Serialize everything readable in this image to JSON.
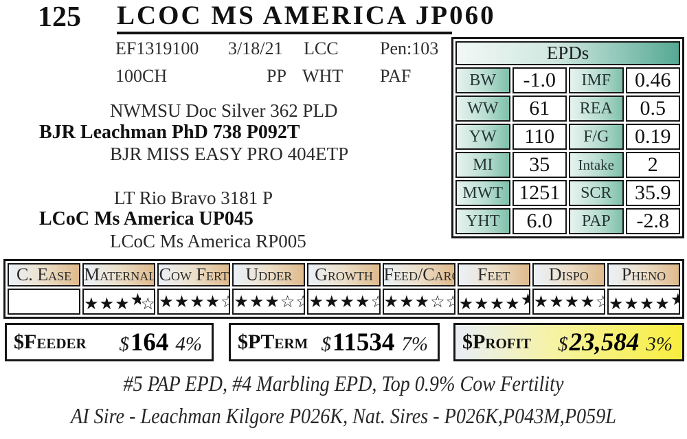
{
  "colors": {
    "epd_teal": "#55a994",
    "epd_label_teal": "#7fc0ab",
    "trait_header_blue": "#ebf1f8",
    "trait_header_tan": "#dfba8c",
    "profit_yellow": "#f8ee3e",
    "border": "#161616"
  },
  "header": {
    "lot_number": "125",
    "title": "LCOC MS AMERICA JP060"
  },
  "info": {
    "registration": "EF1319100",
    "birth_date": "3/18/21",
    "herd_code": "LCC",
    "pen": "Pen:103",
    "breed": "100CH",
    "horn_status": "PP",
    "color": "WHT",
    "status": "PAF"
  },
  "pedigree": {
    "sires_sire": "NWMSU Doc Silver 362 PLD",
    "sire": "BJR Leachman PhD 738 P092T",
    "sires_dam": "BJR MISS EASY PRO 404ETP",
    "dams_sire": "LT Rio Bravo 3181 P",
    "dam": "LCoC Ms America UP045",
    "dams_dam": "LCoC Ms America RP005"
  },
  "epds": {
    "header": "EPDs",
    "rows": [
      {
        "trait1": "BW",
        "value1": "-1.0",
        "trait2": "IMF",
        "value2": "0.46"
      },
      {
        "trait1": "WW",
        "value1": "61",
        "trait2": "REA",
        "value2": "0.5"
      },
      {
        "trait1": "YW",
        "value1": "110",
        "trait2": "F/G",
        "value2": "0.19"
      },
      {
        "trait1": "MI",
        "value1": "35",
        "trait2": "Intake",
        "value2": "2"
      },
      {
        "trait1": "MWT",
        "value1": "1251",
        "trait2": "SCR",
        "value2": "35.9"
      },
      {
        "trait1": "YHT",
        "value1": "6.0",
        "trait2": "PAP",
        "value2": "-2.8"
      }
    ]
  },
  "traits": {
    "columns": [
      {
        "label": "C. Ease",
        "stars": []
      },
      {
        "label": "Maternal",
        "stars": [
          "full",
          "full",
          "full",
          "half",
          "outline"
        ]
      },
      {
        "label": "Cow Fert",
        "stars": [
          "full",
          "full",
          "full",
          "full",
          "outline"
        ]
      },
      {
        "label": "Udder",
        "stars": [
          "full",
          "full",
          "full",
          "outline",
          "outline"
        ]
      },
      {
        "label": "Growth",
        "stars": [
          "full",
          "full",
          "full",
          "full",
          "outline"
        ]
      },
      {
        "label": "Feed/Carc",
        "stars": [
          "full",
          "full",
          "full",
          "outline",
          "outline"
        ]
      },
      {
        "label": "Feet",
        "stars": [
          "full",
          "full",
          "full",
          "full",
          "half"
        ]
      },
      {
        "label": "Dispo",
        "stars": [
          "full",
          "full",
          "full",
          "full",
          "outline"
        ]
      },
      {
        "label": "Pheno",
        "stars": [
          "full",
          "full",
          "full",
          "full",
          "half"
        ]
      }
    ]
  },
  "dollar_values": {
    "feeder": {
      "label_prefix": "$",
      "label": "Feeder",
      "currency": "$",
      "amount": "164",
      "accuracy": "4%"
    },
    "pterm": {
      "label_prefix": "$",
      "label": "PTerm",
      "currency": "$",
      "amount": "11534",
      "accuracy": "7%"
    },
    "profit": {
      "label_prefix": "$",
      "label": "Profit",
      "currency": "$",
      "amount": "23,584",
      "accuracy": "3%"
    }
  },
  "footnotes": {
    "line1": "#5 PAP EPD, #4 Marbling EPD, Top 0.9% Cow Fertility",
    "line2": "AI Sire - Leachman Kilgore P026K, Nat. Sires - P026K,P043M,P059L"
  }
}
